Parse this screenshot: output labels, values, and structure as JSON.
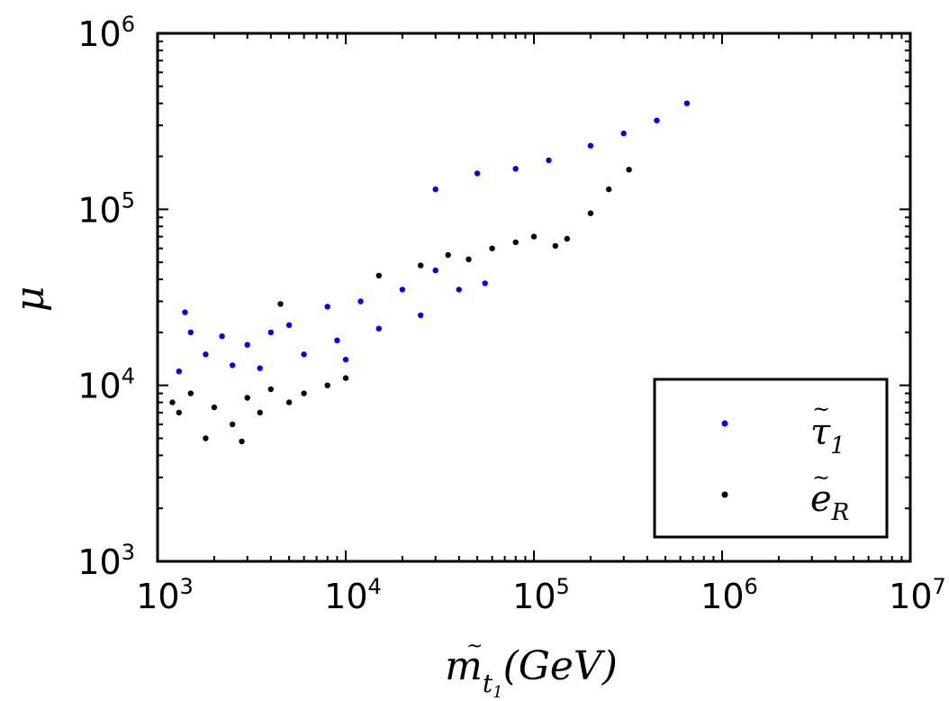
{
  "chart_data": {
    "type": "scatter",
    "title": "",
    "xscale": "log",
    "yscale": "log",
    "xlim": [
      1000,
      10000000
    ],
    "ylim": [
      1000,
      1000000
    ],
    "x_ticks": [
      {
        "base": "10",
        "exp": "3",
        "value": 1000
      },
      {
        "base": "10",
        "exp": "4",
        "value": 10000
      },
      {
        "base": "10",
        "exp": "5",
        "value": 100000
      },
      {
        "base": "10",
        "exp": "6",
        "value": 1000000
      },
      {
        "base": "10",
        "exp": "7",
        "value": 10000000
      }
    ],
    "y_ticks": [
      {
        "base": "10",
        "exp": "3",
        "value": 1000
      },
      {
        "base": "10",
        "exp": "4",
        "value": 10000
      },
      {
        "base": "10",
        "exp": "5",
        "value": 100000
      },
      {
        "base": "10",
        "exp": "6",
        "value": 1000000
      }
    ],
    "xlabel": {
      "base": "m",
      "sub_char": "t",
      "sub_index": "1",
      "unit": "(GeV)"
    },
    "ylabel": "μ",
    "legend_position": "lower-right",
    "series": [
      {
        "name": "tau-tilde-1",
        "legend_symbol": "τ",
        "legend_index": "1",
        "color": "#0000ff",
        "points": [
          [
            1300,
            12000
          ],
          [
            1400,
            26000
          ],
          [
            1500,
            20000
          ],
          [
            1800,
            15000
          ],
          [
            2200,
            19000
          ],
          [
            2500,
            13000
          ],
          [
            3000,
            17000
          ],
          [
            3500,
            12500
          ],
          [
            4000,
            20000
          ],
          [
            5000,
            22000
          ],
          [
            6000,
            15000
          ],
          [
            8000,
            28000
          ],
          [
            9000,
            18000
          ],
          [
            10000,
            14000
          ],
          [
            12000,
            30000
          ],
          [
            15000,
            21000
          ],
          [
            20000,
            35000
          ],
          [
            25000,
            25000
          ],
          [
            30000,
            45000
          ],
          [
            40000,
            35000
          ],
          [
            55000,
            38000
          ],
          [
            30000,
            130000
          ],
          [
            50000,
            160000
          ],
          [
            80000,
            170000
          ],
          [
            120000,
            190000
          ],
          [
            200000,
            230000
          ],
          [
            300000,
            270000
          ],
          [
            450000,
            320000
          ],
          [
            650000,
            400000
          ]
        ]
      },
      {
        "name": "e-tilde-R",
        "legend_symbol": "e",
        "legend_index": "R",
        "color": "#000000",
        "points": [
          [
            1200,
            8000
          ],
          [
            1300,
            7000
          ],
          [
            1500,
            9000
          ],
          [
            1800,
            5000
          ],
          [
            2000,
            7500
          ],
          [
            2500,
            6000
          ],
          [
            2800,
            4800
          ],
          [
            3000,
            8500
          ],
          [
            3500,
            7000
          ],
          [
            4000,
            9500
          ],
          [
            5000,
            8000
          ],
          [
            6000,
            9000
          ],
          [
            8000,
            10000
          ],
          [
            10000,
            11000
          ],
          [
            4500,
            29000
          ],
          [
            15000,
            42000
          ],
          [
            25000,
            48000
          ],
          [
            35000,
            55000
          ],
          [
            45000,
            52000
          ],
          [
            60000,
            60000
          ],
          [
            80000,
            65000
          ],
          [
            100000,
            70000
          ],
          [
            130000,
            62000
          ],
          [
            150000,
            68000
          ],
          [
            200000,
            95000
          ],
          [
            250000,
            130000
          ],
          [
            320000,
            168000
          ]
        ]
      }
    ]
  }
}
